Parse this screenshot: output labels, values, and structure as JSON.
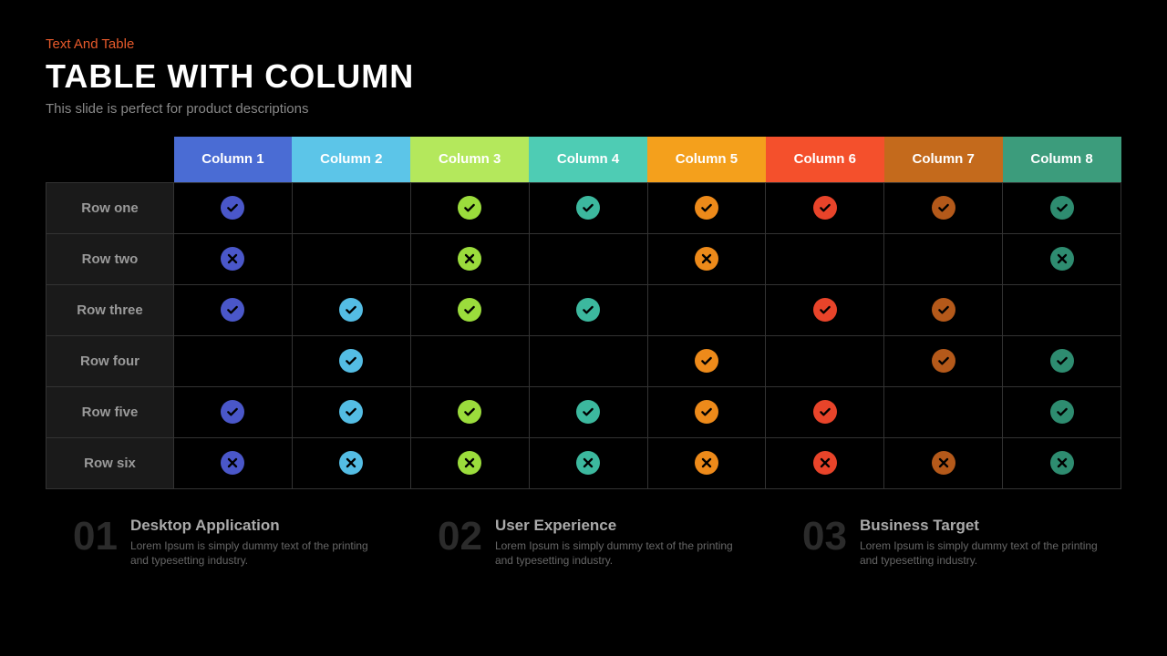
{
  "eyebrow": {
    "text": "Text And Table",
    "color": "#e85a2b"
  },
  "title": "TABLE WITH COLUMN",
  "subtitle": "This slide is perfect for product descriptions",
  "table": {
    "border_color": "#333333",
    "rowhead_bg": "#1a1a1a",
    "rowhead_color": "#9a9a9a",
    "columns": [
      {
        "label": "Column 1",
        "bg": "#4a6cd4",
        "icon_fill": "#4a57c9",
        "mark_color": "#000000"
      },
      {
        "label": "Column 2",
        "bg": "#5cc5e8",
        "icon_fill": "#54bde4",
        "mark_color": "#000000"
      },
      {
        "label": "Column 3",
        "bg": "#b4e85c",
        "icon_fill": "#9bdc3c",
        "mark_color": "#000000"
      },
      {
        "label": "Column 4",
        "bg": "#4eccb4",
        "icon_fill": "#3cb89e",
        "mark_color": "#000000"
      },
      {
        "label": "Column 5",
        "bg": "#f4a01c",
        "icon_fill": "#ed8a1a",
        "mark_color": "#000000"
      },
      {
        "label": "Column 6",
        "bg": "#f4502c",
        "icon_fill": "#e8442a",
        "mark_color": "#000000"
      },
      {
        "label": "Column 7",
        "bg": "#c46a1c",
        "icon_fill": "#b4591a",
        "mark_color": "#000000"
      },
      {
        "label": "Column 8",
        "bg": "#3c9c7c",
        "icon_fill": "#2e8c70",
        "mark_color": "#000000"
      }
    ],
    "rows": [
      {
        "label": "Row one",
        "cells": [
          "check",
          "",
          "check",
          "check",
          "check",
          "check",
          "check",
          "check"
        ]
      },
      {
        "label": "Row two",
        "cells": [
          "cross",
          "",
          "cross",
          "",
          "cross",
          "",
          "",
          "cross"
        ]
      },
      {
        "label": "Row three",
        "cells": [
          "check",
          "check",
          "check",
          "check",
          "",
          "check",
          "check",
          ""
        ]
      },
      {
        "label": "Row four",
        "cells": [
          "",
          "check",
          "",
          "",
          "check",
          "",
          "check",
          "check"
        ]
      },
      {
        "label": "Row five",
        "cells": [
          "check",
          "check",
          "check",
          "check",
          "check",
          "check",
          "",
          "check"
        ]
      },
      {
        "label": "Row six",
        "cells": [
          "cross",
          "cross",
          "cross",
          "cross",
          "cross",
          "cross",
          "cross",
          "cross"
        ]
      }
    ]
  },
  "footer": [
    {
      "num": "01",
      "title": "Desktop Application",
      "body": "Lorem Ipsum is simply dummy text of the printing and typesetting industry."
    },
    {
      "num": "02",
      "title": "User Experience",
      "body": "Lorem Ipsum is simply dummy text of the printing and typesetting industry."
    },
    {
      "num": "03",
      "title": "Business Target",
      "body": "Lorem Ipsum is simply dummy text of the printing and typesetting industry."
    }
  ]
}
